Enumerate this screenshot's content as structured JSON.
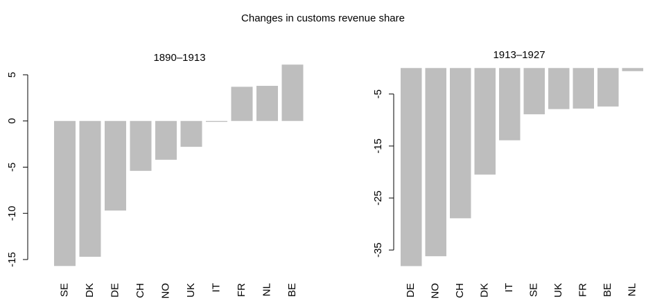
{
  "title": "Changes in customs revenue share",
  "chart_data": [
    {
      "type": "bar",
      "title": "1890–1913",
      "categories": [
        "SE",
        "DK",
        "DE",
        "CH",
        "NO",
        "UK",
        "IT",
        "FR",
        "NL",
        "BE"
      ],
      "values": [
        -15.7,
        -14.7,
        -9.7,
        -5.4,
        -4.2,
        -2.8,
        -0.1,
        3.7,
        3.8,
        6.1
      ],
      "color": "#bebebe",
      "ylim": [
        -16.5,
        6.8
      ],
      "yticks": [
        -15,
        -10,
        -5,
        0,
        5
      ]
    },
    {
      "type": "bar",
      "title": "1913–1927",
      "categories": [
        "DE",
        "NO",
        "CH",
        "DK",
        "IT",
        "SE",
        "UK",
        "FR",
        "BE",
        "NL"
      ],
      "values": [
        -38.1,
        -36.2,
        -28.9,
        -20.5,
        -13.9,
        -8.9,
        -7.9,
        -7.8,
        -7.4,
        -0.6
      ],
      "color": "#bebebe",
      "ylim": [
        -39.5,
        1.9
      ],
      "yticks": [
        -35,
        -25,
        -15,
        -5
      ]
    }
  ]
}
